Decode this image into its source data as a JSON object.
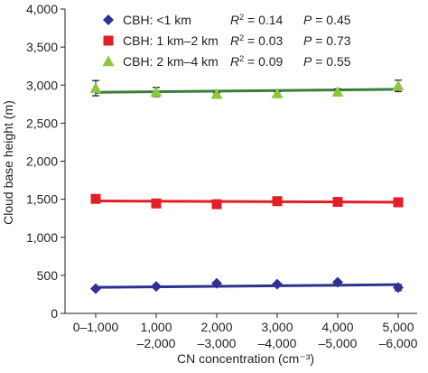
{
  "chart_data": {
    "type": "scatter",
    "xlabel": "CN concentration (cm⁻³)",
    "ylabel": "Cloud base height (m)",
    "ylim": [
      0,
      4000
    ],
    "yticks": [
      "0",
      "500",
      "1,000",
      "1,500",
      "2,000",
      "2,500",
      "3,000",
      "3,500",
      "4,000"
    ],
    "categories": [
      [
        "0–1,000"
      ],
      [
        "1,000",
        "–2,000"
      ],
      [
        "2,000",
        "–3,000"
      ],
      [
        "3,000",
        "–4,000"
      ],
      [
        "4,000",
        "–5,000"
      ],
      [
        "5,000",
        "–6,000"
      ]
    ],
    "series": [
      {
        "name": "CBH: <1 km",
        "marker": "diamond",
        "color": "#2e3192",
        "r2_label": "R",
        "r2_text": " = 0.14",
        "p_label": "P",
        "p_text": " = 0.45",
        "values": [
          325,
          355,
          395,
          385,
          410,
          340
        ],
        "errors": [
          15,
          15,
          18,
          15,
          20,
          40
        ],
        "fit": [
          342,
          378
        ]
      },
      {
        "name": "CBH: 1 km–2 km",
        "marker": "square",
        "color": "#e21e26",
        "r2_label": "R",
        "r2_text": " = 0.03",
        "p_label": "P",
        "p_text": " = 0.73",
        "values": [
          1505,
          1445,
          1435,
          1475,
          1465,
          1460
        ],
        "errors": [
          20,
          15,
          15,
          20,
          15,
          15
        ],
        "fit": [
          1478,
          1462
        ]
      },
      {
        "name": "CBH: 2 km–4 km",
        "marker": "triangle",
        "color": "#8cc63f",
        "r2_label": "R",
        "r2_text": " = 0.09",
        "p_label": "P",
        "p_text": " = 0.55",
        "values": [
          2960,
          2910,
          2880,
          2890,
          2910,
          2990
        ],
        "errors": [
          100,
          60,
          20,
          25,
          40,
          75
        ],
        "fit": [
          2905,
          2945
        ]
      }
    ]
  },
  "style": {
    "fit_line_colors": [
      "#2e3192",
      "#e21e26",
      "#3a7d3a"
    ]
  }
}
